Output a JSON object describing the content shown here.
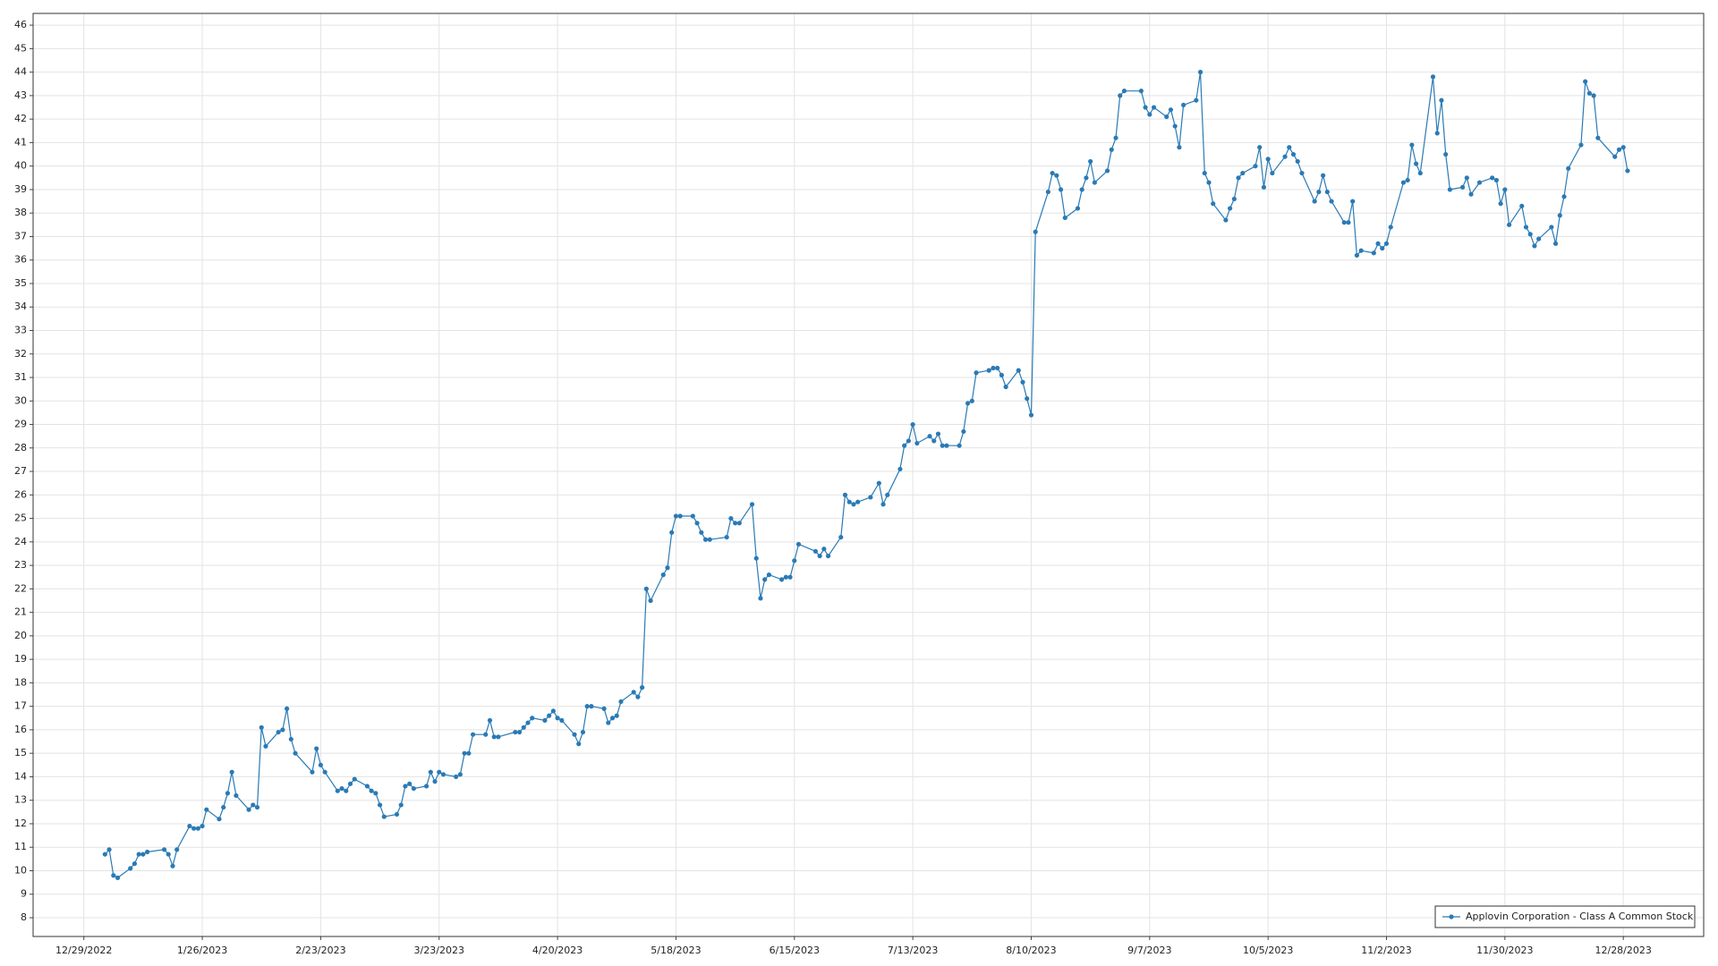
{
  "chart_data": {
    "type": "line",
    "grid": true,
    "legend": "lower right",
    "xlim": [
      "12/17/2022",
      "1/16/2024"
    ],
    "xticks": [
      "12/29/2022",
      "1/26/2023",
      "2/23/2023",
      "3/23/2023",
      "4/20/2023",
      "5/18/2023",
      "6/15/2023",
      "7/13/2023",
      "8/10/2023",
      "9/7/2023",
      "10/5/2023",
      "11/2/2023",
      "11/30/2023",
      "12/28/2023"
    ],
    "ylim": [
      7.2,
      46.5
    ],
    "yticks": [
      8,
      9,
      10,
      11,
      12,
      13,
      14,
      15,
      16,
      17,
      18,
      19,
      20,
      21,
      22,
      23,
      24,
      25,
      26,
      27,
      28,
      29,
      30,
      31,
      32,
      33,
      34,
      35,
      36,
      37,
      38,
      39,
      40,
      41,
      42,
      43,
      44,
      45,
      46
    ],
    "x": [
      "1/3/2023",
      "1/4/2023",
      "1/5/2023",
      "1/6/2023",
      "1/9/2023",
      "1/10/2023",
      "1/11/2023",
      "1/12/2023",
      "1/13/2023",
      "1/17/2023",
      "1/18/2023",
      "1/19/2023",
      "1/20/2023",
      "1/23/2023",
      "1/24/2023",
      "1/25/2023",
      "1/26/2023",
      "1/27/2023",
      "1/30/2023",
      "1/31/2023",
      "2/1/2023",
      "2/2/2023",
      "2/3/2023",
      "2/6/2023",
      "2/7/2023",
      "2/8/2023",
      "2/9/2023",
      "2/10/2023",
      "2/13/2023",
      "2/14/2023",
      "2/15/2023",
      "2/16/2023",
      "2/17/2023",
      "2/21/2023",
      "2/22/2023",
      "2/23/2023",
      "2/24/2023",
      "2/27/2023",
      "2/28/2023",
      "3/1/2023",
      "3/2/2023",
      "3/3/2023",
      "3/6/2023",
      "3/7/2023",
      "3/8/2023",
      "3/9/2023",
      "3/10/2023",
      "3/13/2023",
      "3/14/2023",
      "3/15/2023",
      "3/16/2023",
      "3/17/2023",
      "3/20/2023",
      "3/21/2023",
      "3/22/2023",
      "3/23/2023",
      "3/24/2023",
      "3/27/2023",
      "3/28/2023",
      "3/29/2023",
      "3/30/2023",
      "3/31/2023",
      "4/3/2023",
      "4/4/2023",
      "4/5/2023",
      "4/6/2023",
      "4/10/2023",
      "4/11/2023",
      "4/12/2023",
      "4/13/2023",
      "4/14/2023",
      "4/17/2023",
      "4/18/2023",
      "4/19/2023",
      "4/20/2023",
      "4/21/2023",
      "4/24/2023",
      "4/25/2023",
      "4/26/2023",
      "4/27/2023",
      "4/28/2023",
      "5/1/2023",
      "5/2/2023",
      "5/3/2023",
      "5/4/2023",
      "5/5/2023",
      "5/8/2023",
      "5/9/2023",
      "5/10/2023",
      "5/11/2023",
      "5/12/2023",
      "5/15/2023",
      "5/16/2023",
      "5/17/2023",
      "5/18/2023",
      "5/19/2023",
      "5/22/2023",
      "5/23/2023",
      "5/24/2023",
      "5/25/2023",
      "5/26/2023",
      "5/30/2023",
      "5/31/2023",
      "6/1/2023",
      "6/2/2023",
      "6/5/2023",
      "6/6/2023",
      "6/7/2023",
      "6/8/2023",
      "6/9/2023",
      "6/12/2023",
      "6/13/2023",
      "6/14/2023",
      "6/15/2023",
      "6/16/2023",
      "6/20/2023",
      "6/21/2023",
      "6/22/2023",
      "6/23/2023",
      "6/26/2023",
      "6/27/2023",
      "6/28/2023",
      "6/29/2023",
      "6/30/2023",
      "7/3/2023",
      "7/5/2023",
      "7/6/2023",
      "7/7/2023",
      "7/10/2023",
      "7/11/2023",
      "7/12/2023",
      "7/13/2023",
      "7/14/2023",
      "7/17/2023",
      "7/18/2023",
      "7/19/2023",
      "7/20/2023",
      "7/21/2023",
      "7/24/2023",
      "7/25/2023",
      "7/26/2023",
      "7/27/2023",
      "7/28/2023",
      "7/31/2023",
      "8/1/2023",
      "8/2/2023",
      "8/3/2023",
      "8/4/2023",
      "8/7/2023",
      "8/8/2023",
      "8/9/2023",
      "8/10/2023",
      "8/11/2023",
      "8/14/2023",
      "8/15/2023",
      "8/16/2023",
      "8/17/2023",
      "8/18/2023",
      "8/21/2023",
      "8/22/2023",
      "8/23/2023",
      "8/24/2023",
      "8/25/2023",
      "8/28/2023",
      "8/29/2023",
      "8/30/2023",
      "8/31/2023",
      "9/1/2023",
      "9/5/2023",
      "9/6/2023",
      "9/7/2023",
      "9/8/2023",
      "9/11/2023",
      "9/12/2023",
      "9/13/2023",
      "9/14/2023",
      "9/15/2023",
      "9/18/2023",
      "9/19/2023",
      "9/20/2023",
      "9/21/2023",
      "9/22/2023",
      "9/25/2023",
      "9/26/2023",
      "9/27/2023",
      "9/28/2023",
      "9/29/2023",
      "10/2/2023",
      "10/3/2023",
      "10/4/2023",
      "10/5/2023",
      "10/6/2023",
      "10/9/2023",
      "10/10/2023",
      "10/11/2023",
      "10/12/2023",
      "10/13/2023",
      "10/16/2023",
      "10/17/2023",
      "10/18/2023",
      "10/19/2023",
      "10/20/2023",
      "10/23/2023",
      "10/24/2023",
      "10/25/2023",
      "10/26/2023",
      "10/27/2023",
      "10/30/2023",
      "10/31/2023",
      "11/1/2023",
      "11/2/2023",
      "11/3/2023",
      "11/6/2023",
      "11/7/2023",
      "11/8/2023",
      "11/9/2023",
      "11/10/2023",
      "11/13/2023",
      "11/14/2023",
      "11/15/2023",
      "11/16/2023",
      "11/17/2023",
      "11/20/2023",
      "11/21/2023",
      "11/22/2023",
      "11/24/2023",
      "11/27/2023",
      "11/28/2023",
      "11/29/2023",
      "11/30/2023",
      "12/1/2023",
      "12/4/2023",
      "12/5/2023",
      "12/6/2023",
      "12/7/2023",
      "12/8/2023",
      "12/11/2023",
      "12/12/2023",
      "12/13/2023",
      "12/14/2023",
      "12/15/2023",
      "12/18/2023",
      "12/19/2023",
      "12/20/2023",
      "12/21/2023",
      "12/22/2023",
      "12/26/2023",
      "12/27/2023",
      "12/28/2023",
      "12/29/2023"
    ],
    "series": [
      {
        "name": "Applovin Corporation - Class A Common Stock",
        "color": "#2a7ab5",
        "values": [
          10.7,
          10.9,
          9.8,
          9.7,
          10.1,
          10.3,
          10.7,
          10.7,
          10.8,
          10.9,
          10.7,
          10.2,
          10.9,
          11.9,
          11.8,
          11.8,
          11.9,
          12.6,
          12.2,
          12.7,
          13.3,
          14.2,
          13.2,
          12.6,
          12.8,
          12.7,
          16.1,
          15.3,
          15.9,
          16.0,
          16.9,
          15.6,
          15.0,
          14.2,
          15.2,
          14.5,
          14.2,
          13.4,
          13.5,
          13.4,
          13.7,
          13.9,
          13.6,
          13.4,
          13.3,
          12.8,
          12.3,
          12.4,
          12.8,
          13.6,
          13.7,
          13.5,
          13.6,
          14.2,
          13.8,
          14.2,
          14.1,
          14.0,
          14.1,
          15.0,
          15.0,
          15.8,
          15.8,
          16.4,
          15.7,
          15.7,
          15.9,
          15.9,
          16.1,
          16.3,
          16.5,
          16.4,
          16.6,
          16.8,
          16.5,
          16.4,
          15.8,
          15.4,
          15.9,
          17.0,
          17.0,
          16.9,
          16.3,
          16.5,
          16.6,
          17.2,
          17.6,
          17.4,
          17.8,
          22.0,
          21.5,
          22.6,
          22.9,
          24.4,
          25.1,
          25.1,
          25.1,
          24.8,
          24.4,
          24.1,
          24.1,
          24.2,
          25.0,
          24.8,
          24.8,
          25.6,
          23.3,
          21.6,
          22.4,
          22.6,
          22.4,
          22.5,
          22.5,
          23.2,
          23.9,
          23.6,
          23.4,
          23.7,
          23.4,
          24.2,
          26.0,
          25.7,
          25.6,
          25.7,
          25.9,
          26.5,
          25.6,
          26.0,
          27.1,
          28.1,
          28.3,
          29.0,
          28.2,
          28.5,
          28.3,
          28.6,
          28.1,
          28.1,
          28.1,
          28.7,
          29.9,
          30.0,
          31.2,
          31.3,
          31.4,
          31.4,
          31.1,
          30.6,
          31.3,
          30.8,
          30.1,
          29.4,
          37.2,
          38.9,
          39.7,
          39.6,
          39.0,
          37.8,
          38.2,
          39.0,
          39.5,
          40.2,
          39.3,
          39.8,
          40.7,
          41.2,
          43.0,
          43.2,
          43.2,
          42.5,
          42.2,
          42.5,
          42.1,
          42.4,
          41.7,
          40.8,
          42.6,
          42.8,
          44.0,
          39.7,
          39.3,
          38.4,
          37.7,
          38.2,
          38.6,
          39.5,
          39.7,
          40.0,
          40.8,
          39.1,
          40.3,
          39.7,
          40.4,
          40.8,
          40.5,
          40.2,
          39.7,
          38.5,
          38.9,
          39.6,
          38.9,
          38.5,
          37.6,
          37.6,
          38.5,
          36.2,
          36.4,
          36.3,
          36.7,
          36.5,
          36.7,
          37.4,
          39.3,
          39.4,
          40.9,
          40.1,
          39.7,
          43.8,
          41.4,
          42.8,
          40.5,
          39.0,
          39.1,
          39.5,
          38.8,
          39.3,
          39.5,
          39.4,
          38.4,
          39.0,
          37.5,
          38.3,
          37.4,
          37.1,
          36.6,
          36.9,
          37.4,
          36.7,
          37.9,
          38.7,
          39.9,
          40.9,
          43.6,
          43.1,
          43.0,
          41.2,
          40.4,
          40.7,
          40.8,
          39.8
        ]
      }
    ]
  }
}
